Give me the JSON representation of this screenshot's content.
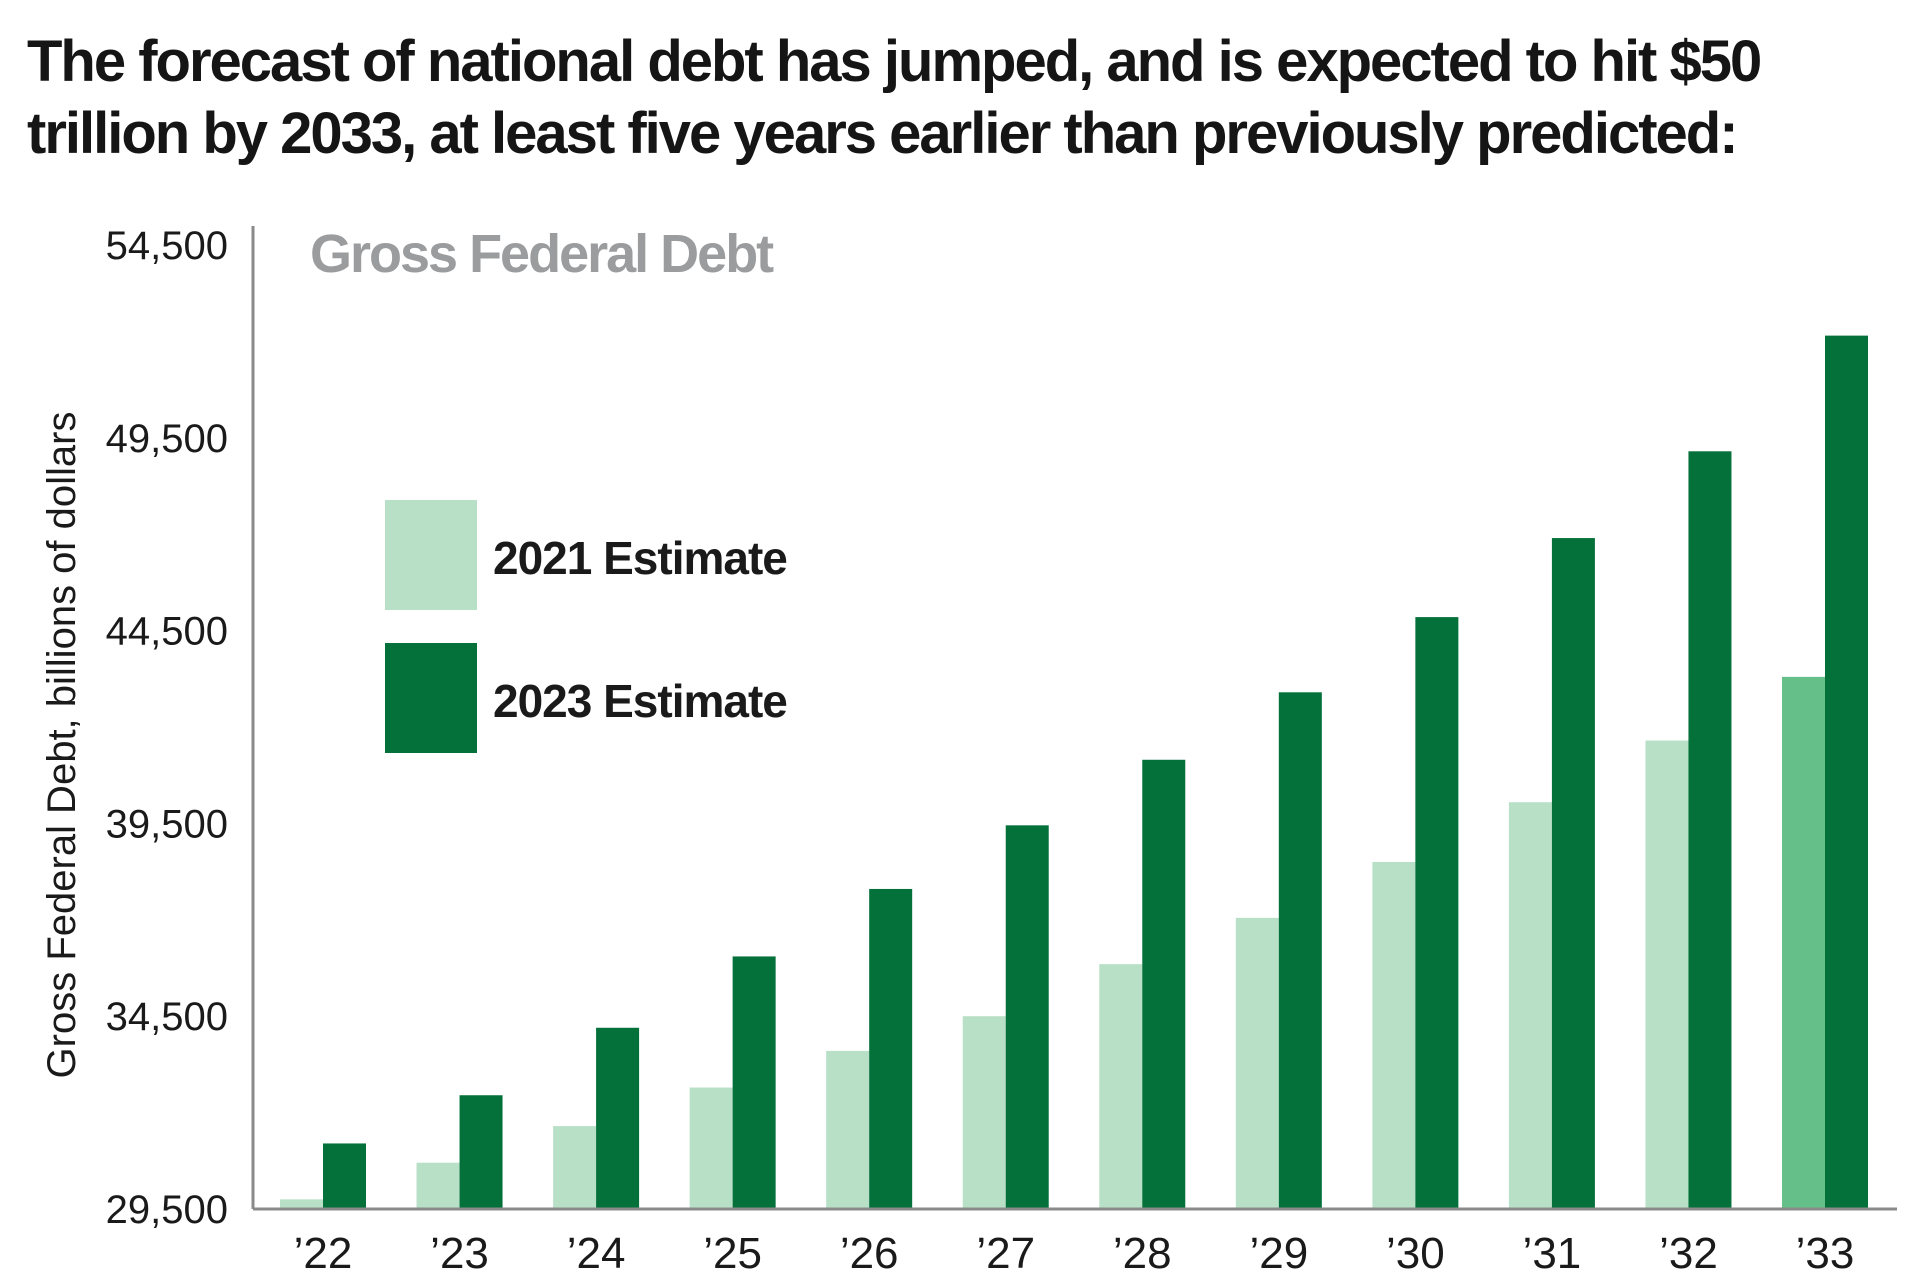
{
  "headline": "The forecast of national debt has jumped, and is expected to hit $50 trillion by 2033, at least five years earlier than previously predicted:",
  "chart_data": {
    "type": "bar",
    "title": "Gross Federal Debt",
    "ylabel": "Gross Federal Debt, billions of dollars",
    "xlabel": "",
    "ylim": [
      29500,
      54500
    ],
    "yticks": [
      29500,
      34500,
      39500,
      44500,
      49500,
      54500
    ],
    "ytick_labels": [
      "29,500",
      "34,500",
      "39,500",
      "44,500",
      "49,500",
      "54,500"
    ],
    "categories": [
      "’22",
      "’23",
      "’24",
      "’25",
      "’26",
      "’27",
      "’28",
      "’29",
      "’30",
      "’31",
      "’32",
      "’33"
    ],
    "series": [
      {
        "name": "2021 Estimate",
        "color": "#b8e0c7",
        "values": [
          29750,
          30700,
          31650,
          32650,
          33600,
          34500,
          35850,
          37050,
          38500,
          40050,
          41650,
          43300
        ],
        "highlight_index": 11,
        "highlight_color": "#64c088"
      },
      {
        "name": "2023 Estimate",
        "color": "#04703a",
        "values": [
          31200,
          32450,
          34200,
          36050,
          37800,
          39450,
          41150,
          42900,
          44850,
          46900,
          49150,
          52150
        ]
      }
    ],
    "legend": "upper-left",
    "grid": false
  }
}
